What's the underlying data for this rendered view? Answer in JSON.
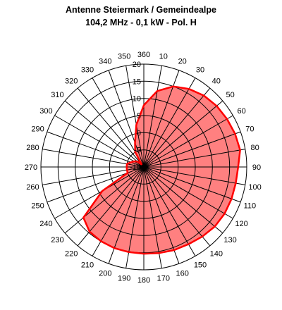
{
  "chart_data": {
    "type": "polar",
    "title": "Antenne Steiermark / Gemeindealpe",
    "subtitle": "104,2 MHz - 0,1 kW - Pol. H",
    "angle_unit": "degrees",
    "angle_ticks": [
      360,
      10,
      20,
      30,
      40,
      50,
      60,
      70,
      80,
      90,
      100,
      110,
      120,
      130,
      140,
      150,
      160,
      170,
      180,
      190,
      200,
      210,
      220,
      230,
      240,
      250,
      260,
      270,
      280,
      290,
      300,
      310,
      320,
      330,
      340,
      350
    ],
    "radial_ticks": [
      -10,
      -5,
      0,
      5,
      10,
      15,
      20
    ],
    "rlim": [
      -10,
      20
    ],
    "fill_color": "#ff8080",
    "line_color": "#ff0000",
    "series": [
      {
        "angles": [
          0,
          10,
          20,
          30,
          40,
          50,
          60,
          70,
          80,
          90,
          100,
          110,
          120,
          130,
          140,
          150,
          160,
          170,
          180,
          190,
          200,
          210,
          220,
          230,
          240,
          250,
          260,
          270,
          280,
          290,
          300,
          310,
          320,
          330,
          340,
          350
        ],
        "values": [
          8,
          12.5,
          15,
          16.3,
          17.2,
          17.7,
          18,
          18.3,
          18.5,
          17.5,
          17.2,
          17.2,
          17.2,
          17,
          16.5,
          16,
          15.8,
          15.5,
          15.3,
          15.2,
          15.2,
          15,
          14.6,
          13,
          4,
          -5,
          -5,
          -5,
          -5,
          -6,
          -6.7,
          -7.5,
          -9,
          -5,
          -2.5,
          2.5
        ]
      }
    ]
  }
}
